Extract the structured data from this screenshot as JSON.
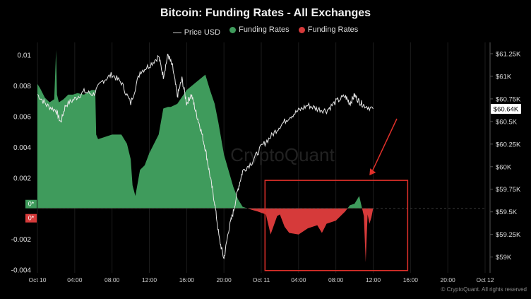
{
  "chart_data": {
    "type": "area",
    "title": "Bitcoin: Funding Rates - All Exchanges",
    "legend": [
      {
        "label": "Price USD",
        "color": "#d9d9d9",
        "kind": "line"
      },
      {
        "label": "Funding Rates",
        "color": "#3f9b5c",
        "kind": "dot"
      },
      {
        "label": "Funding Rates",
        "color": "#d63a3a",
        "kind": "dot"
      }
    ],
    "x_ticks": [
      "Oct 10",
      "04:00",
      "08:00",
      "12:00",
      "16:00",
      "20:00",
      "Oct 11",
      "04:00",
      "08:00",
      "12:00",
      "16:00",
      "20:00",
      "Oct 12"
    ],
    "x_range_hours": [
      0,
      48
    ],
    "left_axis": {
      "ticks": [
        0.01,
        0.008,
        0.006,
        0.004,
        0.002,
        -0.002,
        -0.004
      ],
      "labels": [
        "0.01",
        "0.008",
        "0.006",
        "0.004",
        "0.002",
        "-0.002",
        "-0.004"
      ],
      "range": [
        -0.0042,
        0.0108
      ]
    },
    "right_axis": {
      "ticks": [
        61250,
        61000,
        60750,
        60500,
        60250,
        60000,
        59750,
        59500,
        59250,
        59000
      ],
      "labels": [
        "$61.25K",
        "$61K",
        "$60.75K",
        "$60.5K",
        "$60.25K",
        "$60K",
        "$59.75K",
        "$59.5K",
        "$59.25K",
        "$59K"
      ],
      "range": [
        58825,
        61375
      ]
    },
    "zero_badges": {
      "positive": "0*",
      "negative": "0*"
    },
    "current_price_label": "$60.64K",
    "funding_rates": {
      "hours": [
        0,
        0.3,
        0.8,
        1.3,
        1.8,
        2.0,
        2.1,
        2.3,
        2.8,
        3.3,
        3.8,
        4.3,
        5,
        5.8,
        6.2,
        6.3,
        6.5,
        7,
        8,
        9,
        9.6,
        10,
        10.2,
        10.5,
        11,
        11.5,
        12,
        13,
        13.5,
        14,
        14.3,
        15,
        16,
        17,
        18,
        18.5,
        19,
        19.4,
        20,
        21,
        21.5,
        22,
        22.5,
        23,
        23.6,
        24.5,
        25,
        25.7,
        26,
        26.5,
        27,
        28,
        29,
        30,
        30.5,
        31,
        32,
        33,
        33.5,
        34,
        34.5,
        35,
        35.2,
        35.4,
        35.6,
        35.8,
        36,
        37,
        38,
        40,
        44,
        48
      ],
      "values": [
        0.0081,
        0.0078,
        0.0072,
        0.0069,
        0.0071,
        0.0103,
        0.0074,
        0.0069,
        0.0071,
        0.0074,
        0.0074,
        0.0075,
        0.0074,
        0.0077,
        0.0077,
        0.0048,
        0.0045,
        0.0046,
        0.0048,
        0.0048,
        0.0042,
        0.0032,
        0.0015,
        0.0008,
        0.0025,
        0.0028,
        0.0036,
        0.0048,
        0.0065,
        0.0066,
        0.0066,
        0.0068,
        0.0077,
        0.0082,
        0.0087,
        0.0077,
        0.0068,
        0.0056,
        0.0035,
        0.0014,
        0.0006,
        0.0001,
        0.0,
        -0.0001,
        -0.0002,
        -0.0004,
        -0.0017,
        -0.0005,
        -0.0004,
        -0.0012,
        -0.0016,
        -0.0017,
        -0.0013,
        -0.0011,
        -0.0016,
        -0.001,
        -0.0008,
        -0.0002,
        0.0002,
        0.0003,
        0.0008,
        -0.0005,
        -0.0035,
        -0.0004,
        -0.001,
        -0.0006,
        0.0,
        0.0,
        0.0,
        0.0,
        0.0,
        0.0
      ]
    },
    "price_usd": {
      "hours": [
        0,
        1,
        2,
        2.5,
        3,
        4,
        5,
        6,
        7,
        8,
        9,
        10,
        11,
        12,
        13,
        13.5,
        14,
        14.5,
        15,
        15.5,
        16,
        16.5,
        17,
        17.5,
        18,
        18.5,
        19,
        19.5,
        20,
        20.5,
        21,
        21.5,
        22,
        23,
        24,
        25,
        26,
        27,
        28,
        29,
        30,
        31,
        32,
        33,
        33.5,
        34,
        34.5,
        35,
        36
      ],
      "values": [
        60800,
        60680,
        60620,
        60490,
        60680,
        60750,
        60830,
        60800,
        60950,
        61020,
        60930,
        60700,
        61050,
        61120,
        61220,
        61000,
        61240,
        61100,
        60780,
        60970,
        60700,
        60800,
        60600,
        60420,
        60200,
        59900,
        59600,
        59200,
        58980,
        59300,
        59500,
        59750,
        59950,
        60050,
        60220,
        60330,
        60450,
        60550,
        60620,
        60680,
        60640,
        60620,
        60720,
        60780,
        60700,
        60790,
        60720,
        60680,
        60640
      ]
    },
    "annotation": {
      "type": "highlight-box",
      "x_range_hours": [
        24.4,
        39.7
      ],
      "y_range": [
        -0.00405,
        0.00182
      ],
      "arrow": "red arrow pointing to negative funding region"
    },
    "watermark": "CryptoQuant"
  },
  "credit": "© CryptoQuant. All rights reserved"
}
